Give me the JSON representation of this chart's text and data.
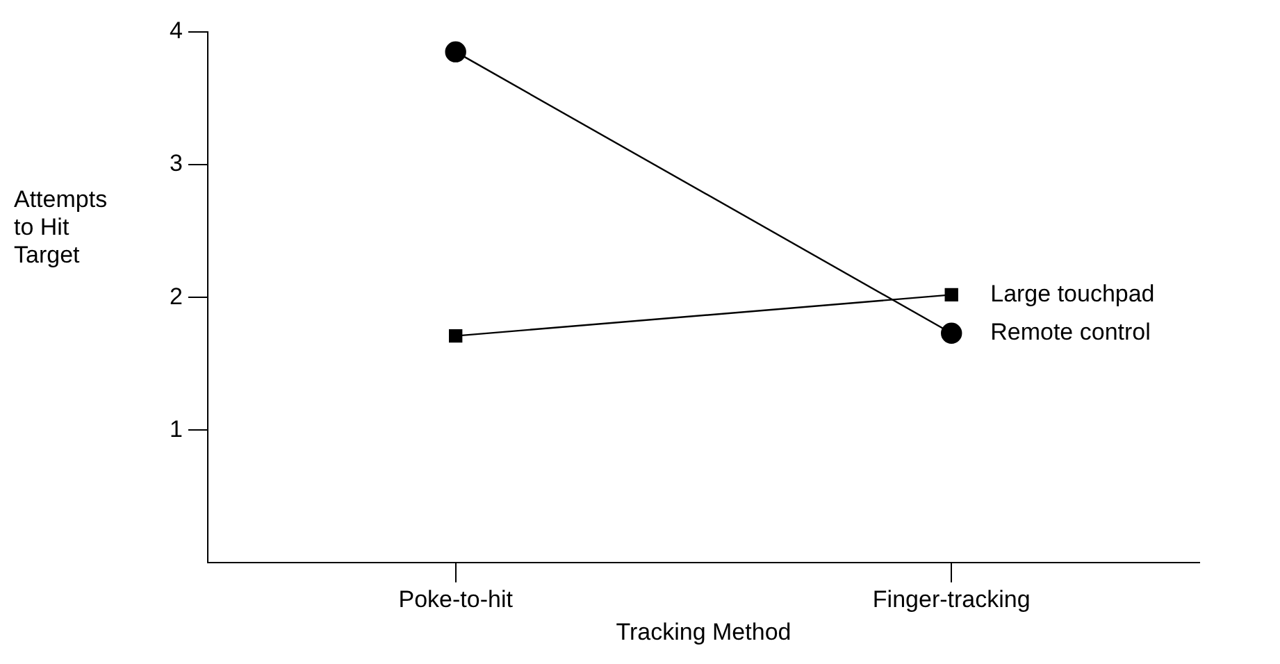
{
  "chart_data": {
    "type": "line",
    "xlabel": "Tracking Method",
    "ylabel": "Attempts to Hit Target",
    "categories": [
      "Poke-to-hit",
      "Finger-tracking"
    ],
    "ylim": [
      0,
      4
    ],
    "yticks": [
      1,
      2,
      3,
      4
    ],
    "legend": false,
    "series": [
      {
        "name": "Large touchpad",
        "color": "#000000",
        "marker": "square",
        "values": [
          1.71,
          2.02
        ]
      },
      {
        "name": "Remote control",
        "color": "#000000",
        "marker": "circle",
        "values": [
          3.85,
          1.73
        ]
      }
    ]
  }
}
